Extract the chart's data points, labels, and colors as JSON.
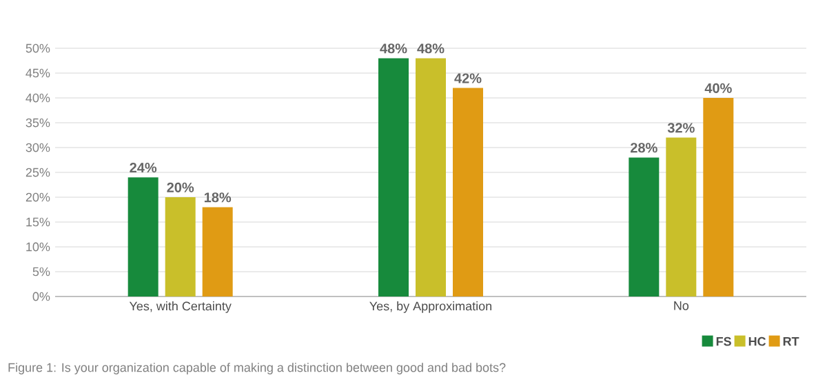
{
  "chart_data": {
    "type": "bar",
    "categories": [
      "Yes, with Certainty",
      "Yes, by Approximation",
      "No"
    ],
    "series": [
      {
        "name": "FS",
        "color": "#178a3c",
        "values": [
          24,
          48,
          28
        ],
        "value_labels": [
          "24%",
          "48%",
          "28%"
        ]
      },
      {
        "name": "HC",
        "color": "#c9bf2a",
        "values": [
          20,
          48,
          32
        ],
        "value_labels": [
          "20%",
          "48%",
          "32%"
        ]
      },
      {
        "name": "RT",
        "color": "#e09b14",
        "values": [
          18,
          42,
          40
        ],
        "value_labels": [
          "18%",
          "42%",
          "40%"
        ]
      }
    ],
    "ylim": [
      0,
      50
    ],
    "yticks": [
      {
        "value": 0,
        "label": "0%"
      },
      {
        "value": 5,
        "label": "5%"
      },
      {
        "value": 10,
        "label": "10%"
      },
      {
        "value": 15,
        "label": "15%"
      },
      {
        "value": 20,
        "label": "20%"
      },
      {
        "value": 25,
        "label": "25%"
      },
      {
        "value": 30,
        "label": "30%"
      },
      {
        "value": 35,
        "label": "35%"
      },
      {
        "value": 40,
        "label": "40%"
      },
      {
        "value": 45,
        "label": "45%"
      },
      {
        "value": 50,
        "label": "50%"
      }
    ],
    "grid": "y",
    "legend": "bottom right",
    "annotations": [
      "Figure 1: Is your organization capable of making a distinction between good and bad bots?"
    ]
  }
}
